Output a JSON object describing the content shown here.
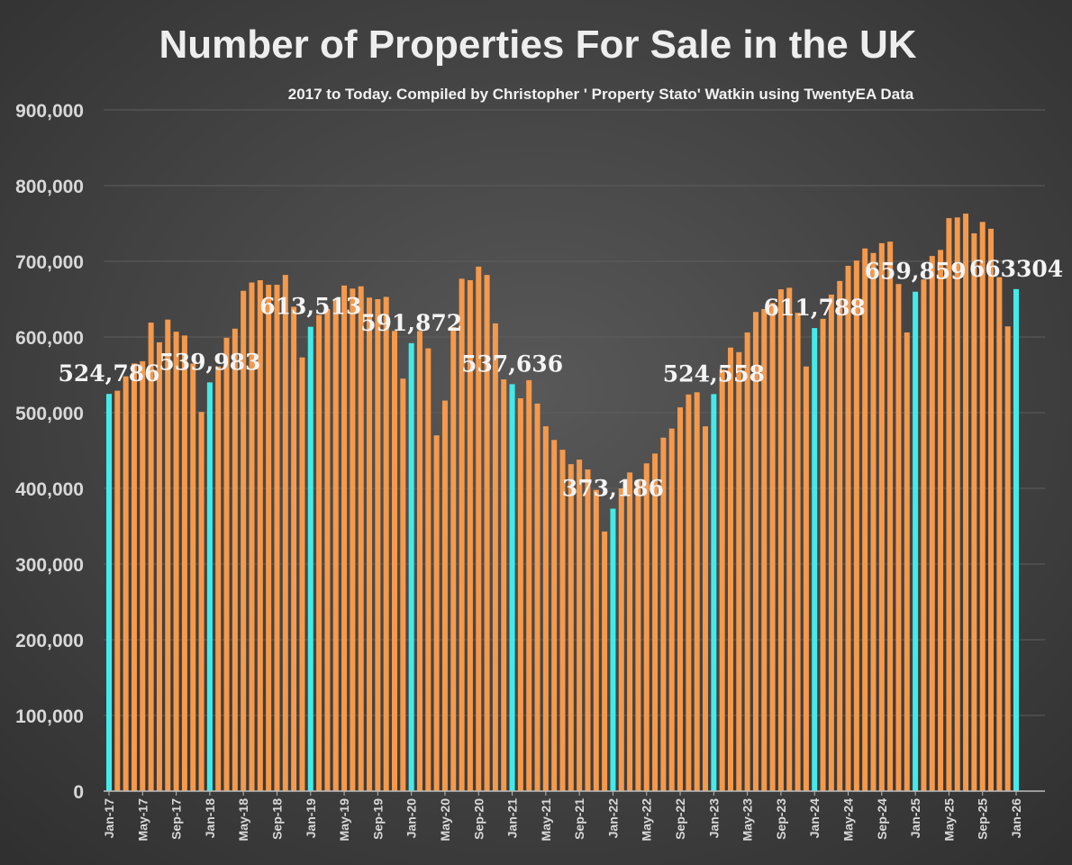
{
  "chart_data": {
    "type": "bar",
    "title": "Number of Properties For Sale in the UK",
    "subtitle": "2017 to Today. Compiled by Christopher ' Property Stato' Watkin using TwentyEA Data",
    "xlabel": "",
    "ylabel": "",
    "ylim": [
      0,
      900000
    ],
    "yticks": [
      "0",
      "100,000",
      "200,000",
      "300,000",
      "400,000",
      "500,000",
      "600,000",
      "700,000",
      "800,000",
      "900,000"
    ],
    "grid": true,
    "legend": "none",
    "x_start": "Jan-17",
    "x_tick_labels": [
      "Jan-17",
      "May-17",
      "Sep-17",
      "Jan-18",
      "May-18",
      "Sep-18",
      "Jan-19",
      "May-19",
      "Sep-19",
      "Jan-20",
      "May-20",
      "Sep-20",
      "Jan-21",
      "May-21",
      "Sep-21",
      "Jan-22",
      "May-22",
      "Sep-22",
      "Jan-23",
      "May-23",
      "Sep-23",
      "Jan-24",
      "May-24",
      "Sep-24",
      "Jan-25",
      "May-25",
      "Sep-25",
      "Jan-26"
    ],
    "values": [
      524786,
      529000,
      548000,
      565000,
      568000,
      619000,
      593000,
      623000,
      607000,
      602000,
      565000,
      501000,
      539983,
      561000,
      599000,
      611000,
      661000,
      672000,
      675000,
      669000,
      669000,
      682000,
      640000,
      573000,
      613513,
      629000,
      637000,
      650000,
      668000,
      664000,
      667000,
      652000,
      650000,
      653000,
      608000,
      545000,
      591872,
      608000,
      585000,
      470000,
      516000,
      613000,
      677000,
      675000,
      693000,
      682000,
      618000,
      544000,
      537636,
      519000,
      543000,
      512000,
      482000,
      464000,
      451000,
      432000,
      438000,
      425000,
      398000,
      343000,
      373186,
      400000,
      421000,
      411000,
      433000,
      446000,
      467000,
      479000,
      507000,
      524000,
      527000,
      482000,
      524558,
      557000,
      586000,
      580000,
      606000,
      633000,
      637000,
      645000,
      663000,
      665000,
      632000,
      561000,
      611788,
      624000,
      656000,
      674000,
      694000,
      701000,
      717000,
      711000,
      724000,
      726000,
      670000,
      606000,
      659859,
      676000,
      707000,
      715000,
      757000,
      758000,
      763000,
      737000,
      752000,
      743000,
      679000,
      614000,
      663304
    ],
    "highlight_every_january": true,
    "colors": {
      "bar": "#F5994B",
      "highlight": "#42EBEA",
      "background_center": "#585858",
      "background_edge": "#2f2f2f",
      "grid": "#5e5e5e"
    },
    "data_labels": [
      {
        "index": 0,
        "text": "524,786"
      },
      {
        "index": 12,
        "text": "539,983"
      },
      {
        "index": 24,
        "text": "613,513"
      },
      {
        "index": 36,
        "text": "591,872"
      },
      {
        "index": 48,
        "text": "537,636"
      },
      {
        "index": 60,
        "text": "373,186"
      },
      {
        "index": 72,
        "text": "524,558"
      },
      {
        "index": 84,
        "text": "611,788"
      },
      {
        "index": 96,
        "text": "659,859"
      },
      {
        "index": 108,
        "text": "663304"
      }
    ]
  }
}
